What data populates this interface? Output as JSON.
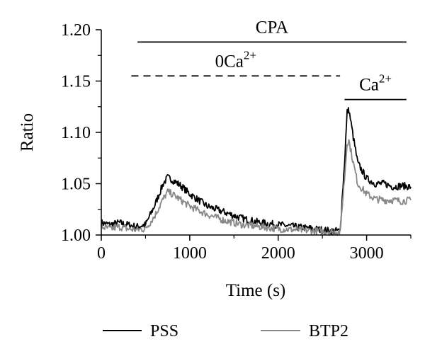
{
  "chart_data": {
    "type": "line",
    "xlabel": "Time (s)",
    "ylabel": "Ratio",
    "xlim": [
      0,
      3500
    ],
    "ylim": [
      1.0,
      1.2
    ],
    "x_ticks": [
      0,
      1000,
      2000,
      3000
    ],
    "x_tick_labels": [
      "0",
      "1000",
      "2000",
      "3000"
    ],
    "y_ticks": [
      1.0,
      1.05,
      1.1,
      1.15,
      1.2
    ],
    "y_tick_labels": [
      "1.00",
      "1.05",
      "1.10",
      "1.15",
      "1.20"
    ],
    "grid": false,
    "legend_position": "bottom",
    "series": [
      {
        "name": "PSS",
        "color": "#000000",
        "x": [
          0,
          100,
          200,
          300,
          400,
          500,
          600,
          700,
          750,
          800,
          900,
          1000,
          1200,
          1400,
          1600,
          1800,
          2000,
          2200,
          2400,
          2600,
          2700,
          2750,
          2780,
          2800,
          2850,
          2900,
          3000,
          3100,
          3200,
          3300,
          3400,
          3500
        ],
        "values": [
          1.012,
          1.01,
          1.012,
          1.01,
          1.008,
          1.01,
          1.028,
          1.05,
          1.056,
          1.054,
          1.048,
          1.04,
          1.028,
          1.022,
          1.016,
          1.012,
          1.01,
          1.008,
          1.006,
          1.004,
          1.004,
          1.07,
          1.12,
          1.122,
          1.095,
          1.07,
          1.055,
          1.05,
          1.05,
          1.047,
          1.048,
          1.047
        ]
      },
      {
        "name": "BTP2",
        "color": "#888888",
        "x": [
          0,
          100,
          200,
          300,
          400,
          500,
          600,
          700,
          750,
          800,
          900,
          1000,
          1200,
          1400,
          1600,
          1800,
          2000,
          2200,
          2400,
          2600,
          2700,
          2750,
          2780,
          2800,
          2850,
          2900,
          3000,
          3100,
          3200,
          3300,
          3400,
          3500
        ],
        "values": [
          1.008,
          1.006,
          1.008,
          1.006,
          1.005,
          1.006,
          1.018,
          1.035,
          1.042,
          1.04,
          1.034,
          1.028,
          1.02,
          1.014,
          1.01,
          1.008,
          1.006,
          1.005,
          1.004,
          1.003,
          1.003,
          1.055,
          1.09,
          1.092,
          1.07,
          1.05,
          1.04,
          1.035,
          1.034,
          1.034,
          1.033,
          1.034
        ]
      }
    ],
    "annotations": [
      {
        "id": "cpa",
        "label": "CPA",
        "style": "solid",
        "x_start": 410,
        "x_end": 3450,
        "y": 1.188
      },
      {
        "id": "zero-ca",
        "label_main": "0Ca",
        "label_sup": "2+",
        "style": "dashed",
        "x_start": 340,
        "x_end": 2700,
        "y": 1.155
      },
      {
        "id": "ca",
        "label_main": "Ca",
        "label_sup": "2+",
        "style": "solid",
        "x_start": 2750,
        "x_end": 3450,
        "y": 1.132
      }
    ]
  },
  "legend": {
    "items": [
      {
        "name": "PSS",
        "color": "#000000"
      },
      {
        "name": "BTP2",
        "color": "#888888"
      }
    ]
  }
}
